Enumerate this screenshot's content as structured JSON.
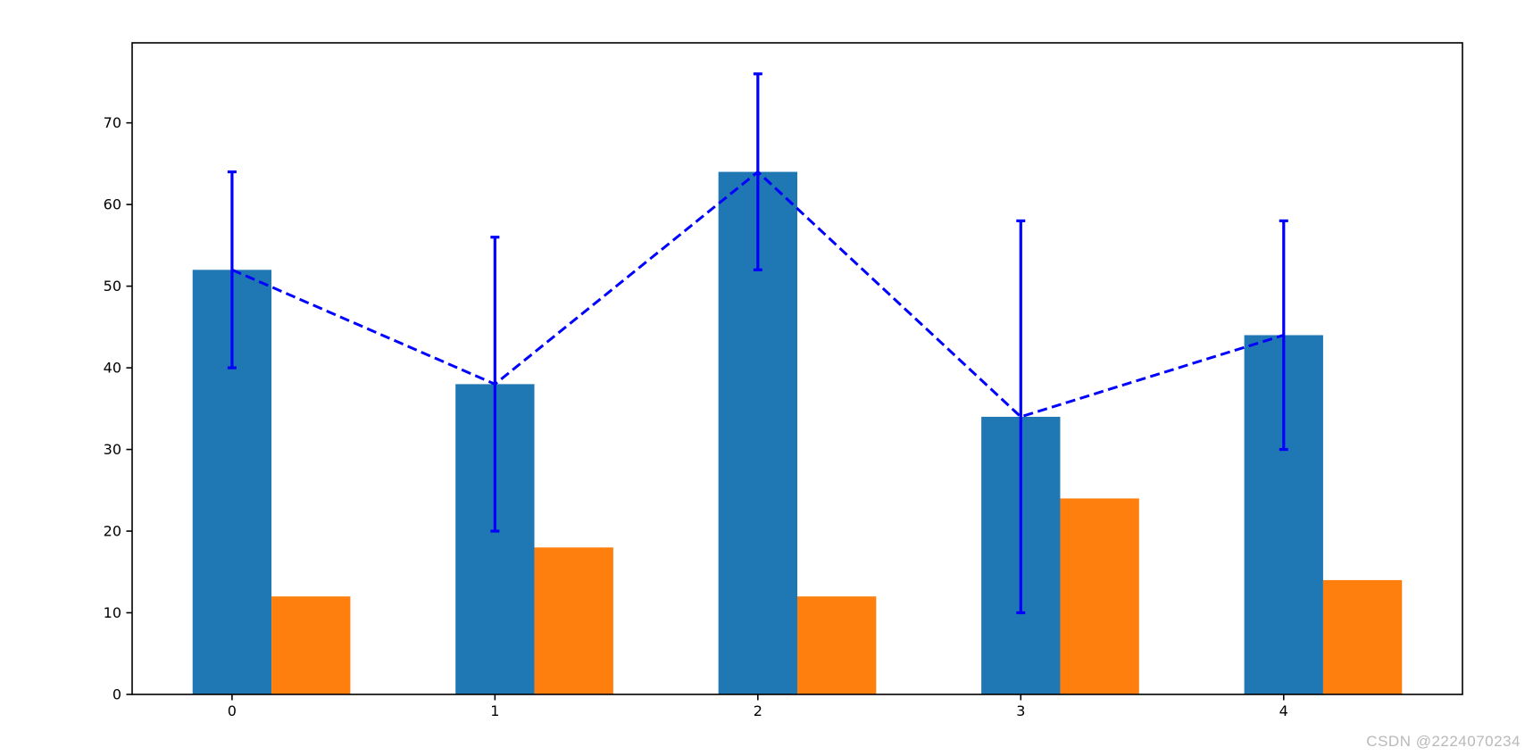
{
  "chart_data": {
    "type": "bar",
    "title": "",
    "xlabel": "",
    "ylabel": "",
    "categories": [
      "0",
      "1",
      "2",
      "3",
      "4"
    ],
    "x": [
      0,
      1,
      2,
      3,
      4
    ],
    "series": [
      {
        "name": "blue-bars",
        "values": [
          52,
          38,
          64,
          34,
          44
        ],
        "color": "#1f77b4"
      },
      {
        "name": "orange-bars",
        "values": [
          12,
          18,
          12,
          24,
          14
        ],
        "color": "#ff7f0e"
      }
    ],
    "errorbar_line": {
      "y": [
        52,
        38,
        64,
        34,
        44
      ],
      "yerr": [
        12,
        18,
        12,
        24,
        14
      ],
      "color": "#0000ff",
      "line_style": "dashed",
      "caps": true
    },
    "bar_width": 0.3,
    "yticks": [
      0,
      10,
      20,
      30,
      40,
      50,
      60,
      70
    ],
    "xticks": [
      "0",
      "1",
      "2",
      "3",
      "4"
    ],
    "ylim": [
      0,
      79.8
    ],
    "xlim": [
      -0.38,
      4.68
    ],
    "grid": false,
    "legend": null,
    "background_color": "#ffffff",
    "spine_color": "#000000"
  },
  "watermark": {
    "text": "CSDN @2224070234",
    "color": "#b9b9b9"
  }
}
